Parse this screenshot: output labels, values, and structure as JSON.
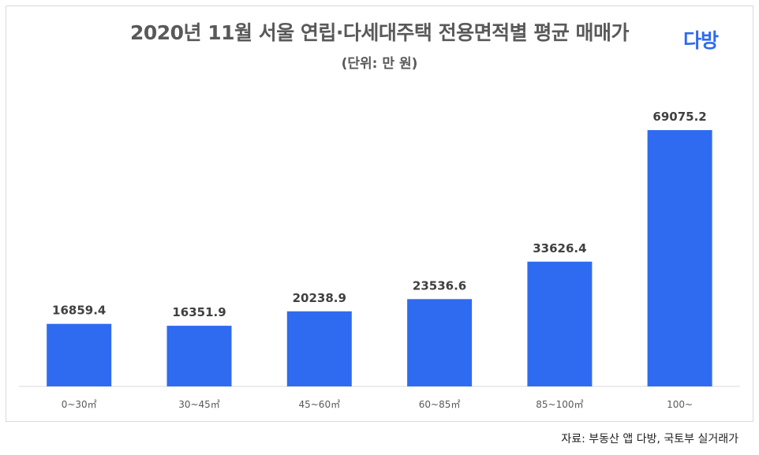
{
  "logo": "다방",
  "footnote": "자료: 부동산 앱 다방, 국토부 실거래가",
  "colors": {
    "bar": "#2f6bf0",
    "axis": "#d9d9d9",
    "text": "#595959"
  },
  "chart_data": {
    "type": "bar",
    "title": "2020년 11월 서울 연립·다세대주택 전용면적별 평균 매매가",
    "subtitle": "(단위: 만 원)",
    "xlabel": "",
    "ylabel": "",
    "categories": [
      "0~30㎡",
      "30~45㎡",
      "45~60㎡",
      "60~85㎡",
      "85~100㎡",
      "100~"
    ],
    "values": [
      16859.4,
      16351.9,
      20238.9,
      23536.6,
      33626.4,
      69075.2
    ],
    "ylim": [
      0,
      69075.2
    ],
    "grid": false,
    "legend": "none"
  }
}
